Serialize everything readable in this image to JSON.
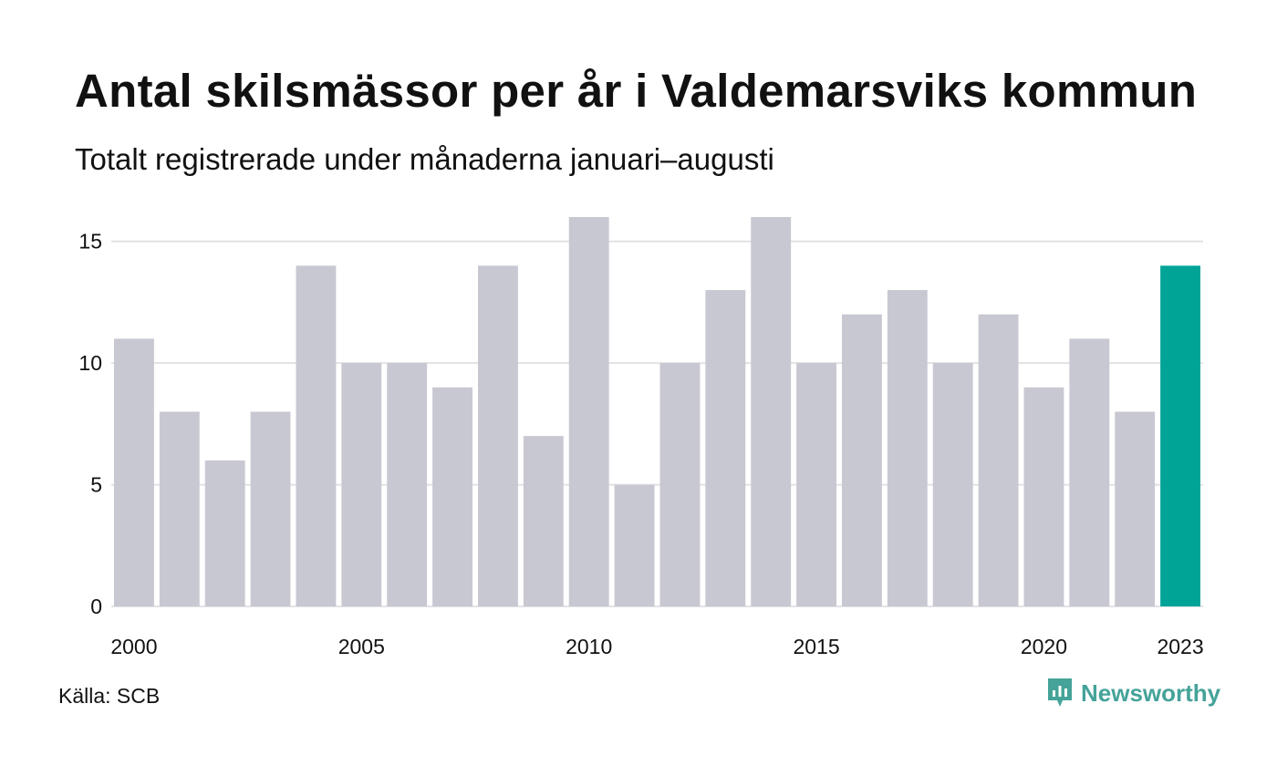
{
  "title": "Antal skilsmässor per år i Valdemarsviks kommun",
  "subtitle": "Totalt registrerade under månaderna januari–augusti",
  "source": "Källa: SCB",
  "brand": {
    "name": "Newsworthy",
    "icon": "newsworthy-logo-icon",
    "color": "#45a399"
  },
  "colors": {
    "bar": "#c8c8d2",
    "highlight": "#00a497",
    "grid": "#e2e2e6"
  },
  "chart_data": {
    "type": "bar",
    "title": "Antal skilsmässor per år i Valdemarsviks kommun",
    "subtitle": "Totalt registrerade under månaderna januari–augusti",
    "categories": [
      "2000",
      "2001",
      "2002",
      "2003",
      "2004",
      "2005",
      "2006",
      "2007",
      "2008",
      "2009",
      "2010",
      "2011",
      "2012",
      "2013",
      "2014",
      "2015",
      "2016",
      "2017",
      "2018",
      "2019",
      "2020",
      "2021",
      "2022",
      "2023"
    ],
    "values": [
      11,
      8,
      6,
      8,
      14,
      10,
      10,
      9,
      14,
      7,
      16,
      5,
      10,
      13,
      16,
      10,
      12,
      13,
      10,
      12,
      9,
      11,
      8,
      14
    ],
    "highlight": "2023",
    "x_tick_labels": [
      "2000",
      "2005",
      "2010",
      "2015",
      "2020",
      "2023"
    ],
    "y_ticks": [
      0,
      5,
      10,
      15
    ],
    "ylim": [
      0,
      16
    ],
    "xlabel": "",
    "ylabel": "",
    "grid": true,
    "legend": "none"
  }
}
